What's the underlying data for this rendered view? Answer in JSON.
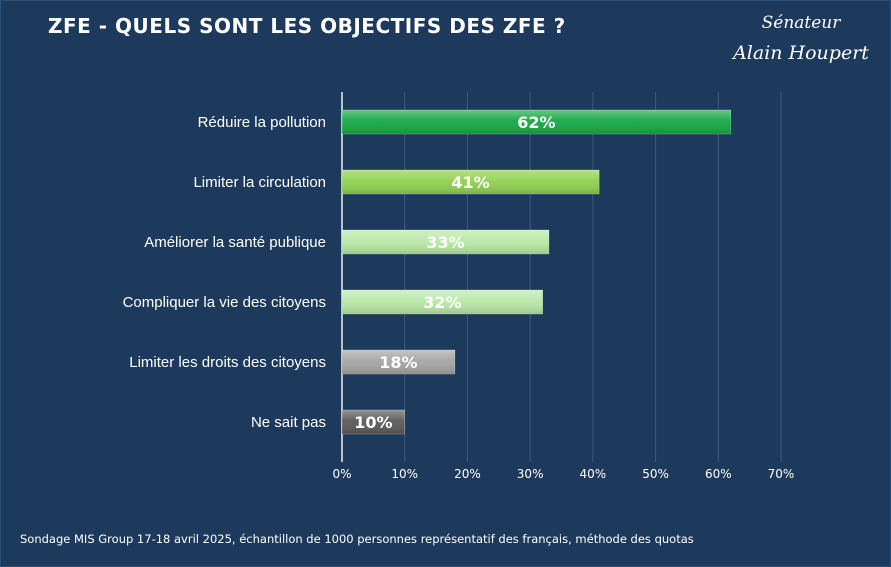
{
  "header": {
    "title": "ZFE - QUELS SONT LES OBJECTIFS DES ZFE ?",
    "brand_line1": "Sénateur",
    "brand_line2": "Alain Houpert"
  },
  "footer": {
    "source": "Sondage MIS Group 17-18 avril 2025, échantillon de 1000 personnes représentatif des français, méthode des quotas"
  },
  "chart_data": {
    "type": "bar",
    "orientation": "horizontal",
    "categories": [
      "Réduire la pollution",
      "Limiter la circulation",
      "Améliorer la santé publique",
      "Compliquer la vie des citoyens",
      "Limiter les droits des citoyens",
      "Ne sait pas"
    ],
    "values": [
      62,
      41,
      33,
      32,
      18,
      10
    ],
    "data_labels": [
      "62%",
      "41%",
      "33%",
      "32%",
      "18%",
      "10%"
    ],
    "bar_colors": [
      "#16a844",
      "#8fd14f",
      "#b9e8a6",
      "#b9e8a6",
      "#a5a5a5",
      "#5a5a5a"
    ],
    "xlim": [
      0,
      70
    ],
    "xticks": [
      0,
      10,
      20,
      30,
      40,
      50,
      60,
      70
    ],
    "xtick_labels": [
      "0%",
      "10%",
      "20%",
      "30%",
      "40%",
      "50%",
      "60%",
      "70%"
    ],
    "grid": true,
    "title": "ZFE - QUELS SONT LES OBJECTIFS DES ZFE ?"
  }
}
